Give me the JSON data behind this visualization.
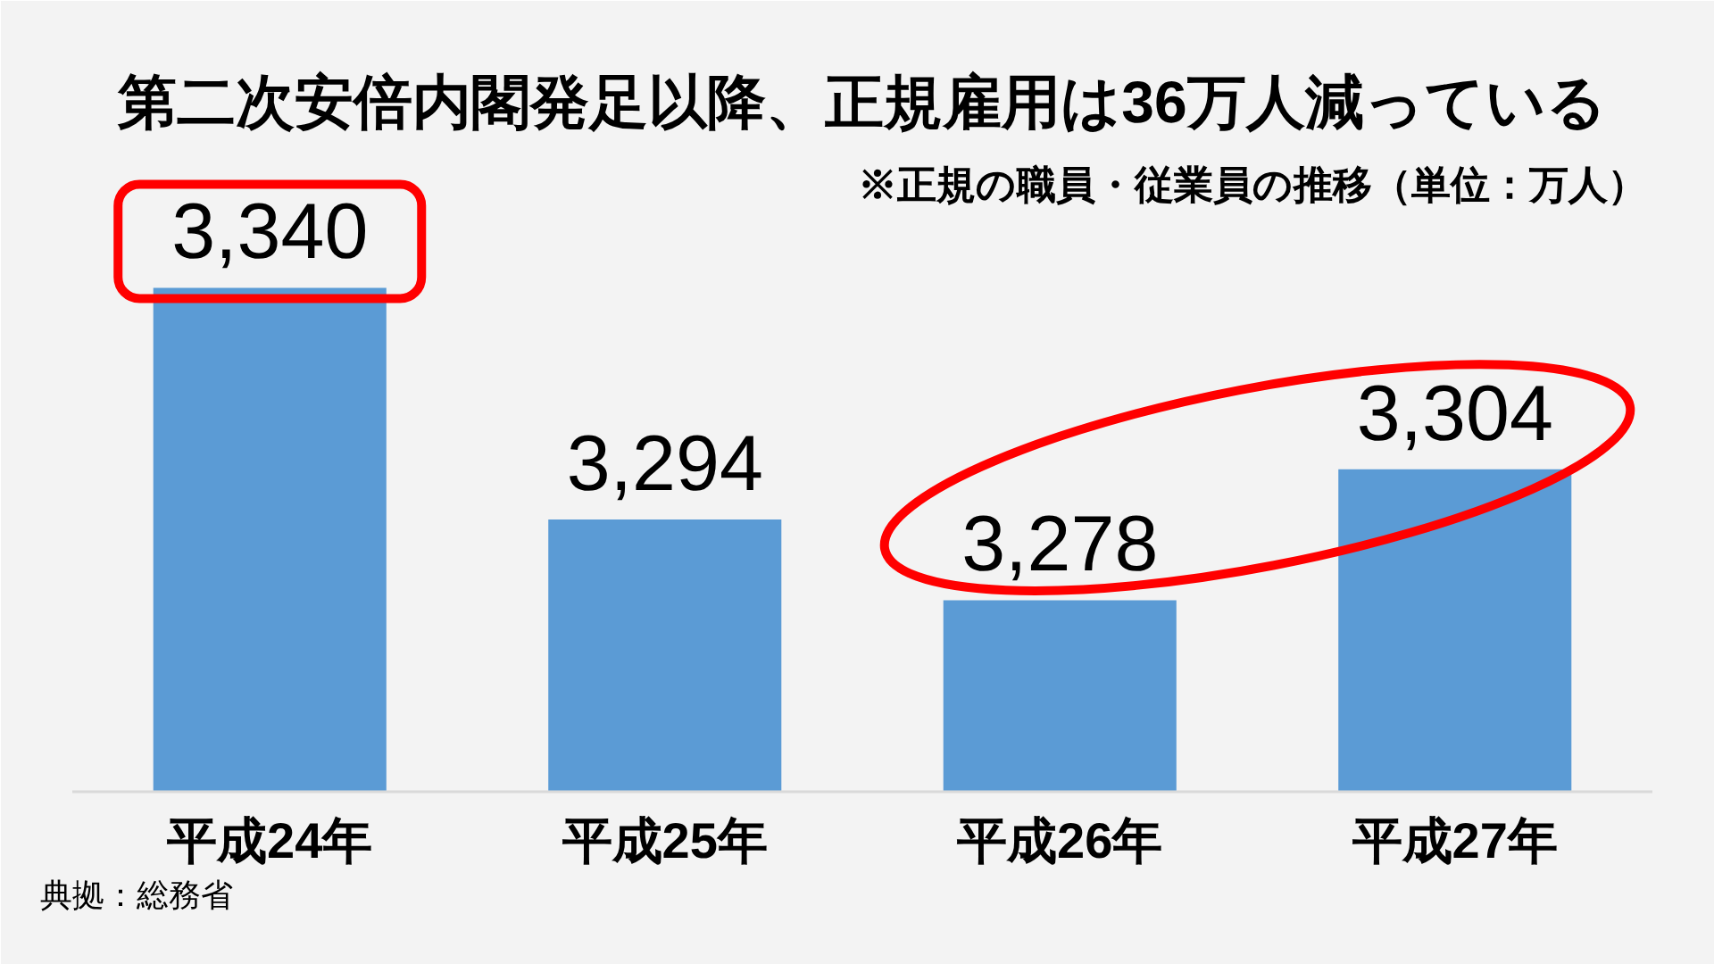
{
  "chart_data": {
    "type": "bar",
    "title": "第二次安倍内閣発足以降、正規雇用は36万人減っている",
    "subtitle": "※正規の職員・従業員の推移（単位：万人）",
    "categories": [
      "平成24年",
      "平成25年",
      "平成26年",
      "平成27年"
    ],
    "values": [
      3340,
      3294,
      3278,
      3304
    ],
    "value_labels": [
      "3,340",
      "3,294",
      "3,278",
      "3,304"
    ],
    "color": "#5b9bd5",
    "ylim": [
      3240,
      3370
    ],
    "tick_labels": "x",
    "annotations": [
      "典拠：総務省"
    ]
  }
}
